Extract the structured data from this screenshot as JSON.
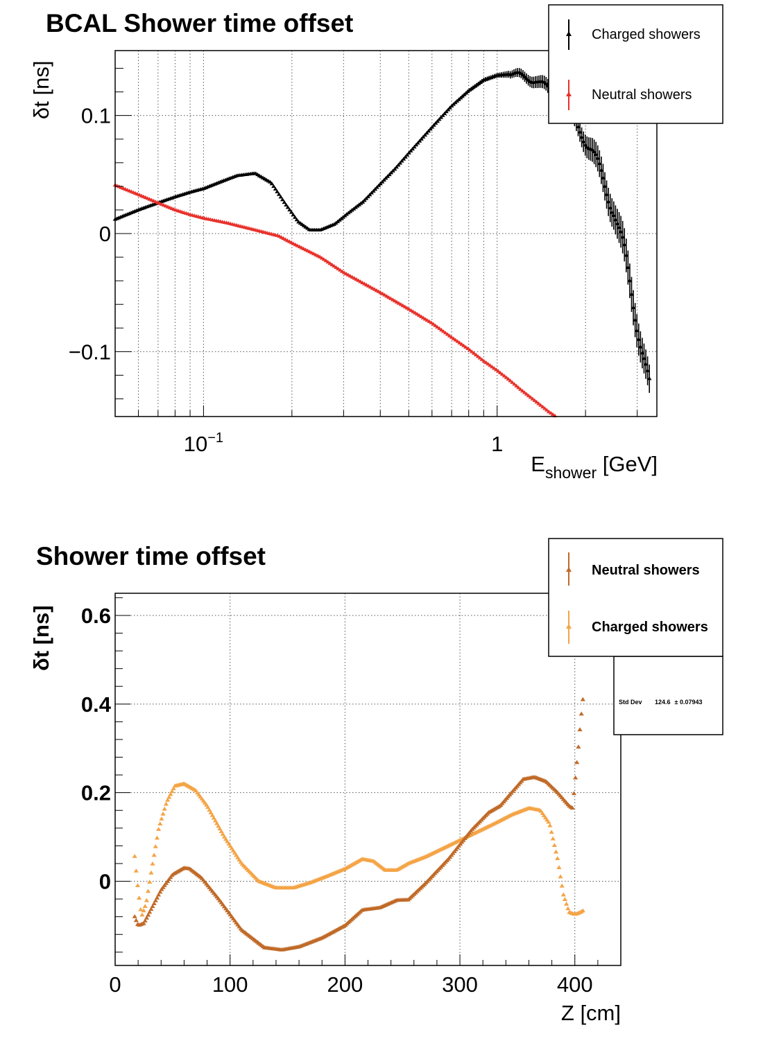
{
  "chart_data": [
    {
      "type": "scatter",
      "title": "BCAL Shower time offset",
      "xlabel": "E",
      "xlabel_sub": "shower",
      "xlabel_unit": " [GeV]",
      "ylabel": "δt [ns]",
      "x_scale": "log",
      "xlim": [
        0.05,
        3.5
      ],
      "ylim": [
        -0.155,
        0.155
      ],
      "grid": true,
      "legend_position": "top-right",
      "x_ticks": [
        {
          "value": 0.1,
          "base": "10",
          "exp": "−1"
        },
        {
          "value": 1,
          "label": "1"
        }
      ],
      "y_ticks": [
        {
          "value": 0.1,
          "label": "0.1"
        },
        {
          "value": 0,
          "label": "0"
        },
        {
          "value": -0.1,
          "label": "−0.1"
        }
      ],
      "series": [
        {
          "name": "Charged showers",
          "color": "#000000",
          "x": [
            0.05,
            0.06,
            0.07,
            0.08,
            0.09,
            0.1,
            0.115,
            0.13,
            0.15,
            0.17,
            0.19,
            0.21,
            0.23,
            0.25,
            0.28,
            0.31,
            0.35,
            0.4,
            0.45,
            0.5,
            0.6,
            0.7,
            0.8,
            0.9,
            1.0,
            1.1,
            1.2,
            1.35,
            1.5,
            1.7,
            1.9,
            2.1,
            2.3,
            2.5,
            2.7,
            2.9,
            3.1,
            3.3
          ],
          "y": [
            0.012,
            0.02,
            0.026,
            0.031,
            0.035,
            0.038,
            0.044,
            0.049,
            0.051,
            0.043,
            0.025,
            0.01,
            0.003,
            0.003,
            0.008,
            0.017,
            0.027,
            0.042,
            0.055,
            0.068,
            0.09,
            0.108,
            0.121,
            0.13,
            0.134,
            0.135,
            0.134,
            0.13,
            0.122,
            0.108,
            0.09,
            0.07,
            0.045,
            0.02,
            -0.015,
            -0.055,
            -0.095,
            -0.13
          ],
          "y_error": [
            0.0005,
            0.0005,
            0.0005,
            0.0005,
            0.0005,
            0.0005,
            0.0005,
            0.0005,
            0.0005,
            0.0005,
            0.0005,
            0.0005,
            0.0005,
            0.0005,
            0.0005,
            0.0005,
            0.0005,
            0.0005,
            0.0005,
            0.0008,
            0.001,
            0.001,
            0.0015,
            0.002,
            0.002,
            0.003,
            0.004,
            0.005,
            0.006,
            0.007,
            0.008,
            0.01,
            0.012,
            0.012,
            0.014,
            0.015,
            0.013,
            0.012
          ]
        },
        {
          "name": "Neutral showers",
          "color": "#e8302a",
          "x": [
            0.05,
            0.06,
            0.07,
            0.08,
            0.09,
            0.1,
            0.12,
            0.15,
            0.18,
            0.2,
            0.25,
            0.3,
            0.4,
            0.5,
            0.6,
            0.7,
            0.8,
            0.9,
            1.0,
            1.1,
            1.2,
            1.35,
            1.5,
            1.65
          ],
          "y": [
            0.041,
            0.033,
            0.026,
            0.02,
            0.016,
            0.013,
            0.009,
            0.003,
            -0.002,
            -0.008,
            -0.02,
            -0.033,
            -0.05,
            -0.064,
            -0.076,
            -0.088,
            -0.098,
            -0.108,
            -0.116,
            -0.124,
            -0.132,
            -0.142,
            -0.151,
            -0.158
          ]
        }
      ]
    },
    {
      "type": "scatter",
      "title": "Shower time offset",
      "xlabel": "Z [cm]",
      "ylabel": "δt [ns]",
      "xlim": [
        0,
        440
      ],
      "ylim": [
        -0.19,
        0.65
      ],
      "grid": true,
      "legend_position": "top-right",
      "x_ticks": [
        {
          "value": 0,
          "label": "0"
        },
        {
          "value": 100,
          "label": "100"
        },
        {
          "value": 200,
          "label": "200"
        },
        {
          "value": 300,
          "label": "300"
        },
        {
          "value": 400,
          "label": "400"
        }
      ],
      "y_ticks": [
        {
          "value": 0.6,
          "label": "0.6"
        },
        {
          "value": 0.4,
          "label": "0.4"
        },
        {
          "value": 0.2,
          "label": "0.2"
        },
        {
          "value": 0,
          "label": "0"
        }
      ],
      "stats_box": {
        "label": "Std Dev",
        "value": "124.6",
        "error": "± 0.07943"
      },
      "series": [
        {
          "name": "Neutral showers",
          "color": "#c06a28",
          "x": [
            17,
            20,
            25,
            30,
            40,
            50,
            60,
            65,
            75,
            90,
            110,
            130,
            145,
            160,
            180,
            200,
            215,
            230,
            245,
            255,
            270,
            290,
            310,
            325,
            335,
            345,
            355,
            365,
            375,
            385,
            395,
            398,
            400,
            403,
            405,
            407
          ],
          "y": [
            -0.08,
            -0.1,
            -0.095,
            -0.07,
            -0.02,
            0.015,
            0.03,
            0.028,
            0.008,
            -0.04,
            -0.11,
            -0.15,
            -0.155,
            -0.148,
            -0.128,
            -0.1,
            -0.065,
            -0.06,
            -0.043,
            -0.042,
            -0.005,
            0.05,
            0.115,
            0.155,
            0.17,
            0.2,
            0.23,
            0.235,
            0.225,
            0.2,
            0.17,
            0.165,
            0.22,
            0.3,
            0.36,
            0.41
          ]
        },
        {
          "name": "Charged showers",
          "color": "#f4a446",
          "x": [
            17,
            20,
            23,
            27,
            32,
            38,
            45,
            52,
            60,
            70,
            80,
            95,
            110,
            125,
            140,
            155,
            170,
            185,
            200,
            215,
            225,
            235,
            245,
            255,
            270,
            290,
            310,
            330,
            345,
            360,
            370,
            378,
            385,
            390,
            395,
            400,
            405,
            408
          ],
          "y": [
            0.056,
            -0.02,
            -0.08,
            -0.05,
            0.03,
            0.12,
            0.18,
            0.215,
            0.22,
            0.205,
            0.17,
            0.1,
            0.04,
            0.0,
            -0.015,
            -0.015,
            -0.003,
            0.012,
            0.028,
            0.05,
            0.045,
            0.025,
            0.025,
            0.04,
            0.055,
            0.08,
            0.105,
            0.13,
            0.15,
            0.165,
            0.16,
            0.13,
            0.05,
            -0.03,
            -0.07,
            -0.075,
            -0.07,
            -0.065
          ]
        }
      ]
    }
  ]
}
